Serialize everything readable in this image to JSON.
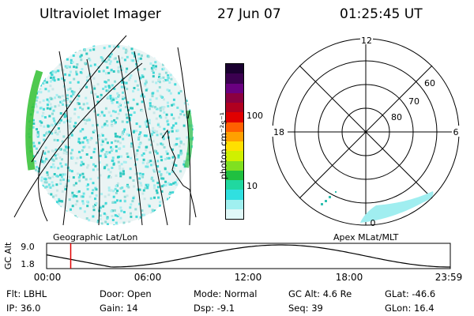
{
  "header": {
    "title": "Ultraviolet Imager",
    "date": "27 Jun 07",
    "time": "01:25:45 UT"
  },
  "left_panel": {
    "projection_label": "Geographic Lat/Lon"
  },
  "colorbar": {
    "unit_label": "photon cm⁻²s⁻¹",
    "tick_100": "100",
    "tick_10": "10",
    "colors": [
      "#1a0030",
      "#3b0050",
      "#6a0080",
      "#8b0040",
      "#b00020",
      "#e00000",
      "#ff6000",
      "#ffa000",
      "#ffe000",
      "#d0f000",
      "#80e020",
      "#20c040",
      "#20d8a0",
      "#30e0e0",
      "#a0f0f0",
      "#e0f8f8"
    ]
  },
  "polar": {
    "label_12": "12",
    "label_18": "18",
    "label_6": "6",
    "label_0": "0",
    "lat_60": "60",
    "lat_70": "70",
    "lat_80": "80",
    "projection_label": "Apex MLat/MLT"
  },
  "altitude_plot": {
    "ylabel": "GC Alt",
    "ytick_top": "9.0",
    "ytick_bottom": "1.8",
    "xticks": [
      "00:00",
      "06:00",
      "12:00",
      "18:00",
      "23:59"
    ],
    "marker_time": "01:25:45"
  },
  "footer": {
    "row1": [
      {
        "label": "Flt:",
        "value": "LBHL"
      },
      {
        "label": "Door:",
        "value": "Open"
      },
      {
        "label": "Mode:",
        "value": "Normal"
      },
      {
        "label": "GC Alt:",
        "value": "4.6 Re"
      },
      {
        "label": "GLat:",
        "value": "-46.6"
      }
    ],
    "row2": [
      {
        "label": "IP:",
        "value": "36.0"
      },
      {
        "label": "Gain:",
        "value": "14"
      },
      {
        "label": "Dsp:",
        "value": "-9.1"
      },
      {
        "label": "Seq:",
        "value": "39"
      },
      {
        "label": "GLon:",
        "value": "16.4"
      }
    ]
  }
}
